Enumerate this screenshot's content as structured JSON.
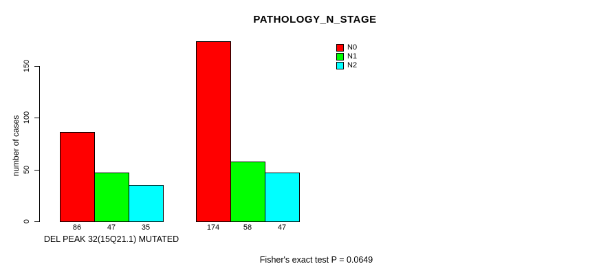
{
  "chart_data": {
    "type": "bar",
    "title": "PATHOLOGY_N_STAGE",
    "ylabel": "number of cases",
    "xlabel": "",
    "ylim": [
      0,
      180
    ],
    "yticks": [
      0,
      50,
      100,
      150
    ],
    "grid": false,
    "legend_position": "top-right",
    "categories": [
      "DEL PEAK 32(15Q21.1) MUTATED",
      ""
    ],
    "series": [
      {
        "name": "N0",
        "color": "#ff0000",
        "values": [
          86,
          174
        ]
      },
      {
        "name": "N1",
        "color": "#00ff00",
        "values": [
          47,
          58
        ]
      },
      {
        "name": "N2",
        "color": "#00ffff",
        "values": [
          35,
          47
        ]
      }
    ],
    "annotation": "Fisher's exact test P = 0.0649"
  },
  "colors": {
    "background": "#ffffff",
    "axis": "#000000",
    "text": "#000000"
  }
}
